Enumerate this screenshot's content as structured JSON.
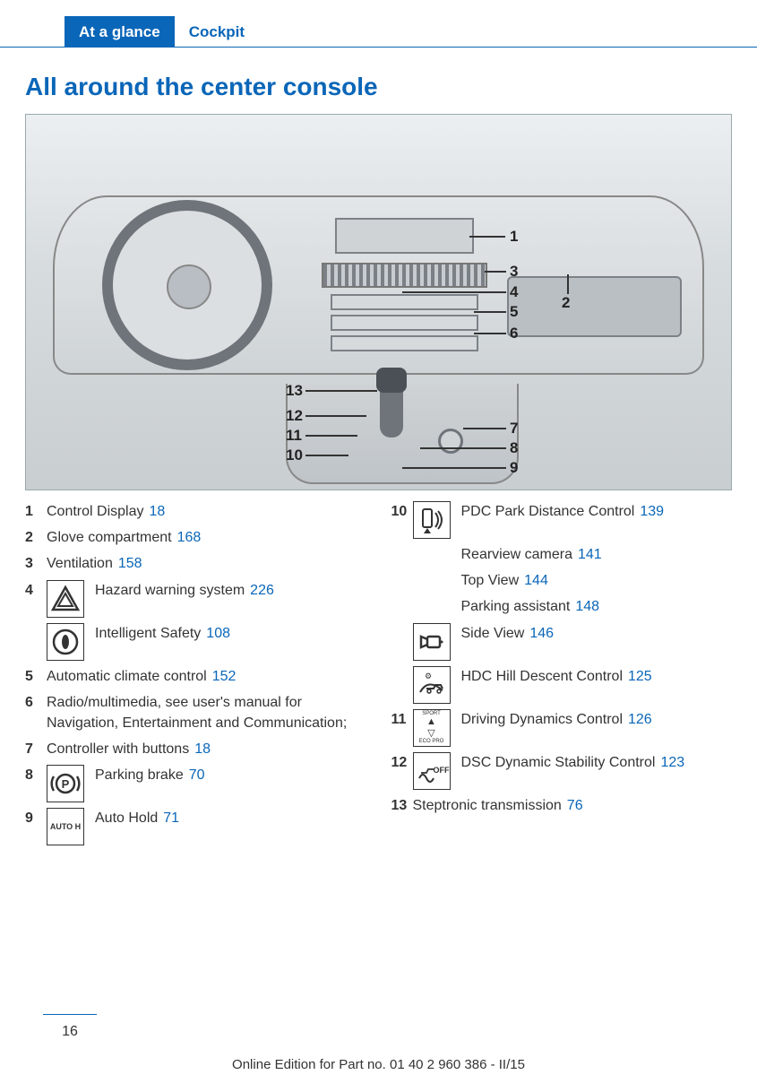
{
  "tabs": {
    "active": "At a glance",
    "inactive": "Cockpit"
  },
  "title": "All around the center console",
  "diagram_callouts": [
    "1",
    "2",
    "3",
    "4",
    "5",
    "6",
    "7",
    "8",
    "9",
    "10",
    "11",
    "12",
    "13"
  ],
  "left": [
    {
      "n": "1",
      "text": "Control Display",
      "page": "18"
    },
    {
      "n": "2",
      "text": "Glove compartment",
      "page": "168"
    },
    {
      "n": "3",
      "text": "Ventilation",
      "page": "158"
    },
    {
      "n": "4",
      "icon": "hazard",
      "text": "Hazard warning system",
      "page": "226"
    },
    {
      "n": "",
      "icon": "isafety",
      "text": "Intelligent Safety",
      "page": "108"
    },
    {
      "n": "5",
      "text": "Automatic climate control",
      "page": "152"
    },
    {
      "n": "6",
      "text": "Radio/multimedia, see user's manual for Navigation, Entertainment and Communication;"
    },
    {
      "n": "7",
      "text": "Controller with buttons",
      "page": "18"
    },
    {
      "n": "8",
      "icon": "pbrake",
      "text": "Parking brake",
      "page": "70"
    },
    {
      "n": "9",
      "icon": "autoh",
      "text": "Auto Hold",
      "page": "71"
    }
  ],
  "right": [
    {
      "n": "10",
      "icon": "pdc",
      "items": [
        {
          "text": "PDC Park Distance Control",
          "page": "139"
        },
        {
          "text": "Rearview camera",
          "page": "141"
        },
        {
          "text": "Top View",
          "page": "144"
        },
        {
          "text": "Parking assistant",
          "page": "148"
        }
      ]
    },
    {
      "n": "",
      "icon": "sideview",
      "items": [
        {
          "text": "Side View",
          "page": "146"
        }
      ]
    },
    {
      "n": "",
      "icon": "hdc",
      "items": [
        {
          "text": "HDC Hill Descent Control",
          "page": "125"
        }
      ]
    },
    {
      "n": "11",
      "icon": "ddc",
      "items": [
        {
          "text": "Driving Dynamics Control",
          "page": "126"
        }
      ]
    },
    {
      "n": "12",
      "icon": "dsc",
      "items": [
        {
          "text": "DSC Dynamic Stability Control",
          "page": "123"
        }
      ]
    },
    {
      "n": "13",
      "text": "Steptronic transmission",
      "page": "76"
    }
  ],
  "footer": "Online Edition for Part no. 01 40 2 960 386 - II/15",
  "pagenum": "16",
  "icons": {
    "autoh_label": "AUTO H",
    "ddc_top": "SPORT",
    "ddc_bot": "ECO PRO",
    "dsc_label": "OFF"
  },
  "colors": {
    "accent": "#0a66b8",
    "text": "#333333"
  }
}
